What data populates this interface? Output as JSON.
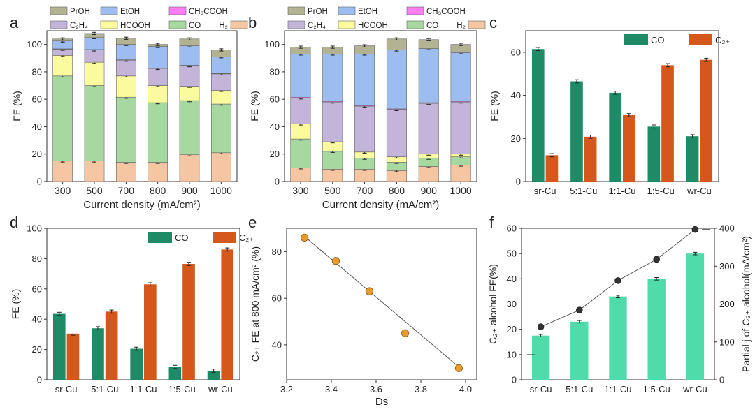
{
  "colors": {
    "H2": "#f6c5a2",
    "CO": "#a6d8a0",
    "HCOOH": "#fafa9e",
    "C2H4": "#c3b4da",
    "CH3COOH": "#ff7df5",
    "EtOH": "#9dbdf0",
    "PrOH": "#b3b394",
    "CO_bar": "#1f8a66",
    "C2_bar": "#d4571c",
    "alcohol_bar": "#4fdcaa",
    "line": "#555555"
  },
  "chart_data": [
    {
      "panel": "a",
      "type": "bar",
      "stacked": true,
      "categories": [
        "300",
        "500",
        "700",
        "800",
        "900",
        "1000"
      ],
      "xlabel": "Current density (mA/cm²)",
      "ylabel": "FE (%)",
      "ylim": [
        0,
        110
      ],
      "yticks": [
        0,
        20,
        40,
        60,
        80,
        100
      ],
      "legend": [
        "PrOH",
        "EtOH",
        "CH₃COOH",
        "C₂H₄",
        "HCOOH",
        "CO",
        "H₂"
      ],
      "series": [
        {
          "name": "H₂",
          "key": "H2",
          "values": [
            15,
            15,
            14,
            14,
            19.5,
            21
          ]
        },
        {
          "name": "CO",
          "key": "CO",
          "values": [
            62,
            55,
            47.5,
            43.5,
            39.5,
            35.5
          ]
        },
        {
          "name": "HCOOH",
          "key": "HCOOH",
          "values": [
            15,
            17,
            15.5,
            12.5,
            10.5,
            10
          ]
        },
        {
          "name": "C₂H₄",
          "key": "C2H4",
          "values": [
            4.5,
            9,
            11.5,
            12.5,
            15,
            12
          ]
        },
        {
          "name": "CH₃COOH",
          "key": "CH3COOH",
          "values": [
            0.3,
            0.3,
            0.3,
            0.3,
            0.3,
            0.3
          ]
        },
        {
          "name": "EtOH",
          "key": "EtOH",
          "values": [
            5.7,
            8.7,
            11.2,
            15.7,
            14.2,
            12.2
          ]
        },
        {
          "name": "PrOH",
          "key": "PrOH",
          "values": [
            1.5,
            3,
            4.5,
            1.5,
            5,
            5
          ]
        }
      ]
    },
    {
      "panel": "b",
      "type": "bar",
      "stacked": true,
      "categories": [
        "300",
        "500",
        "700",
        "800",
        "900",
        "1000"
      ],
      "xlabel": "Current density (mA/cm²)",
      "ylabel": "FE (%)",
      "ylim": [
        0,
        110
      ],
      "yticks": [
        0,
        20,
        40,
        60,
        80,
        100
      ],
      "legend": [
        "PrOH",
        "EtOH",
        "CH₃COOH",
        "C₂H₄",
        "HCOOH",
        "CO",
        "H₂"
      ],
      "series": [
        {
          "name": "H₂",
          "key": "H2",
          "values": [
            10,
            9,
            9,
            8,
            11,
            12
          ]
        },
        {
          "name": "CO",
          "key": "CO",
          "values": [
            21,
            13,
            8,
            6,
            6,
            6
          ]
        },
        {
          "name": "HCOOH",
          "key": "HCOOH",
          "values": [
            11,
            7,
            4.5,
            4,
            3,
            2
          ]
        },
        {
          "name": "C₂H₄",
          "key": "C2H4",
          "values": [
            19,
            29,
            33.5,
            34.5,
            37,
            38
          ]
        },
        {
          "name": "CH₃COOH",
          "key": "CH3COOH",
          "values": [
            0.5,
            0.5,
            0.5,
            0.5,
            0.5,
            0.5
          ]
        },
        {
          "name": "EtOH",
          "key": "EtOH",
          "values": [
            31.5,
            34.5,
            37.5,
            43,
            39.5,
            35.5
          ]
        },
        {
          "name": "PrOH",
          "key": "PrOH",
          "values": [
            5,
            5,
            6,
            8,
            6.5,
            6
          ]
        }
      ]
    },
    {
      "panel": "c",
      "type": "bar",
      "grouped": true,
      "categories": [
        "sr-Cu",
        "5:1-Cu",
        "1:1-Cu",
        "1:5-Cu",
        "wr-Cu"
      ],
      "ylabel": "FE (%)",
      "ylim": [
        0,
        70
      ],
      "yticks": [
        0,
        20,
        40,
        60
      ],
      "series": [
        {
          "name": "CO",
          "key": "CO_bar",
          "values": [
            61.5,
            46.5,
            41.2,
            25.5,
            21
          ]
        },
        {
          "name": "C₂₊",
          "key": "C2_bar",
          "values": [
            12.2,
            20.8,
            30.8,
            54,
            56.5
          ]
        }
      ]
    },
    {
      "panel": "d",
      "type": "bar",
      "grouped": true,
      "categories": [
        "sr-Cu",
        "5:1-Cu",
        "1:1-Cu",
        "1:5-Cu",
        "wr-Cu"
      ],
      "ylabel": "FE (%)",
      "ylim": [
        0,
        100
      ],
      "yticks": [
        0,
        20,
        40,
        60,
        80,
        100
      ],
      "series": [
        {
          "name": "CO",
          "key": "CO_bar",
          "values": [
            43.5,
            34,
            20.5,
            8.5,
            6
          ]
        },
        {
          "name": "C₂₊",
          "key": "C2_bar",
          "values": [
            30.5,
            45,
            63,
            76.5,
            86
          ]
        }
      ]
    },
    {
      "panel": "e",
      "type": "scatter",
      "xlabel": "Ds",
      "ylabel": "C₂₊ FE at 800 mA/cm² (%)",
      "xlim": [
        3.2,
        4.05
      ],
      "ylim": [
        25,
        90
      ],
      "xticks": [
        3.2,
        3.4,
        3.6,
        3.8,
        4.0
      ],
      "yticks": [
        40,
        60,
        80
      ],
      "x": [
        3.28,
        3.42,
        3.57,
        3.73,
        3.97
      ],
      "y": [
        86,
        76,
        63,
        45,
        30
      ],
      "fit": {
        "x": [
          3.28,
          3.97
        ],
        "y": [
          86.5,
          30.5
        ]
      }
    },
    {
      "panel": "f",
      "type": "bar+line",
      "categories": [
        "sr-Cu",
        "5:1-Cu",
        "1:1-Cu",
        "1:5-Cu",
        "wr-Cu"
      ],
      "ylabel": "C₂₊ alcohol FE(%)",
      "ylim": [
        0,
        60
      ],
      "yticks": [
        0,
        10,
        20,
        30,
        40,
        50,
        60
      ],
      "y2label": "Partial j of C₂₊ alcohol(mA/cm²)",
      "y2lim": [
        0,
        400
      ],
      "y2ticks": [
        0,
        100,
        200,
        300,
        400
      ],
      "bar": {
        "name": "C₂₊ alcohol FE",
        "values": [
          17.5,
          23,
          33,
          40,
          50
        ]
      },
      "line": {
        "name": "Partial j",
        "values": [
          140,
          184,
          262,
          318,
          397
        ]
      }
    }
  ],
  "panel_labels": [
    "a",
    "b",
    "c",
    "d",
    "e",
    "f"
  ]
}
